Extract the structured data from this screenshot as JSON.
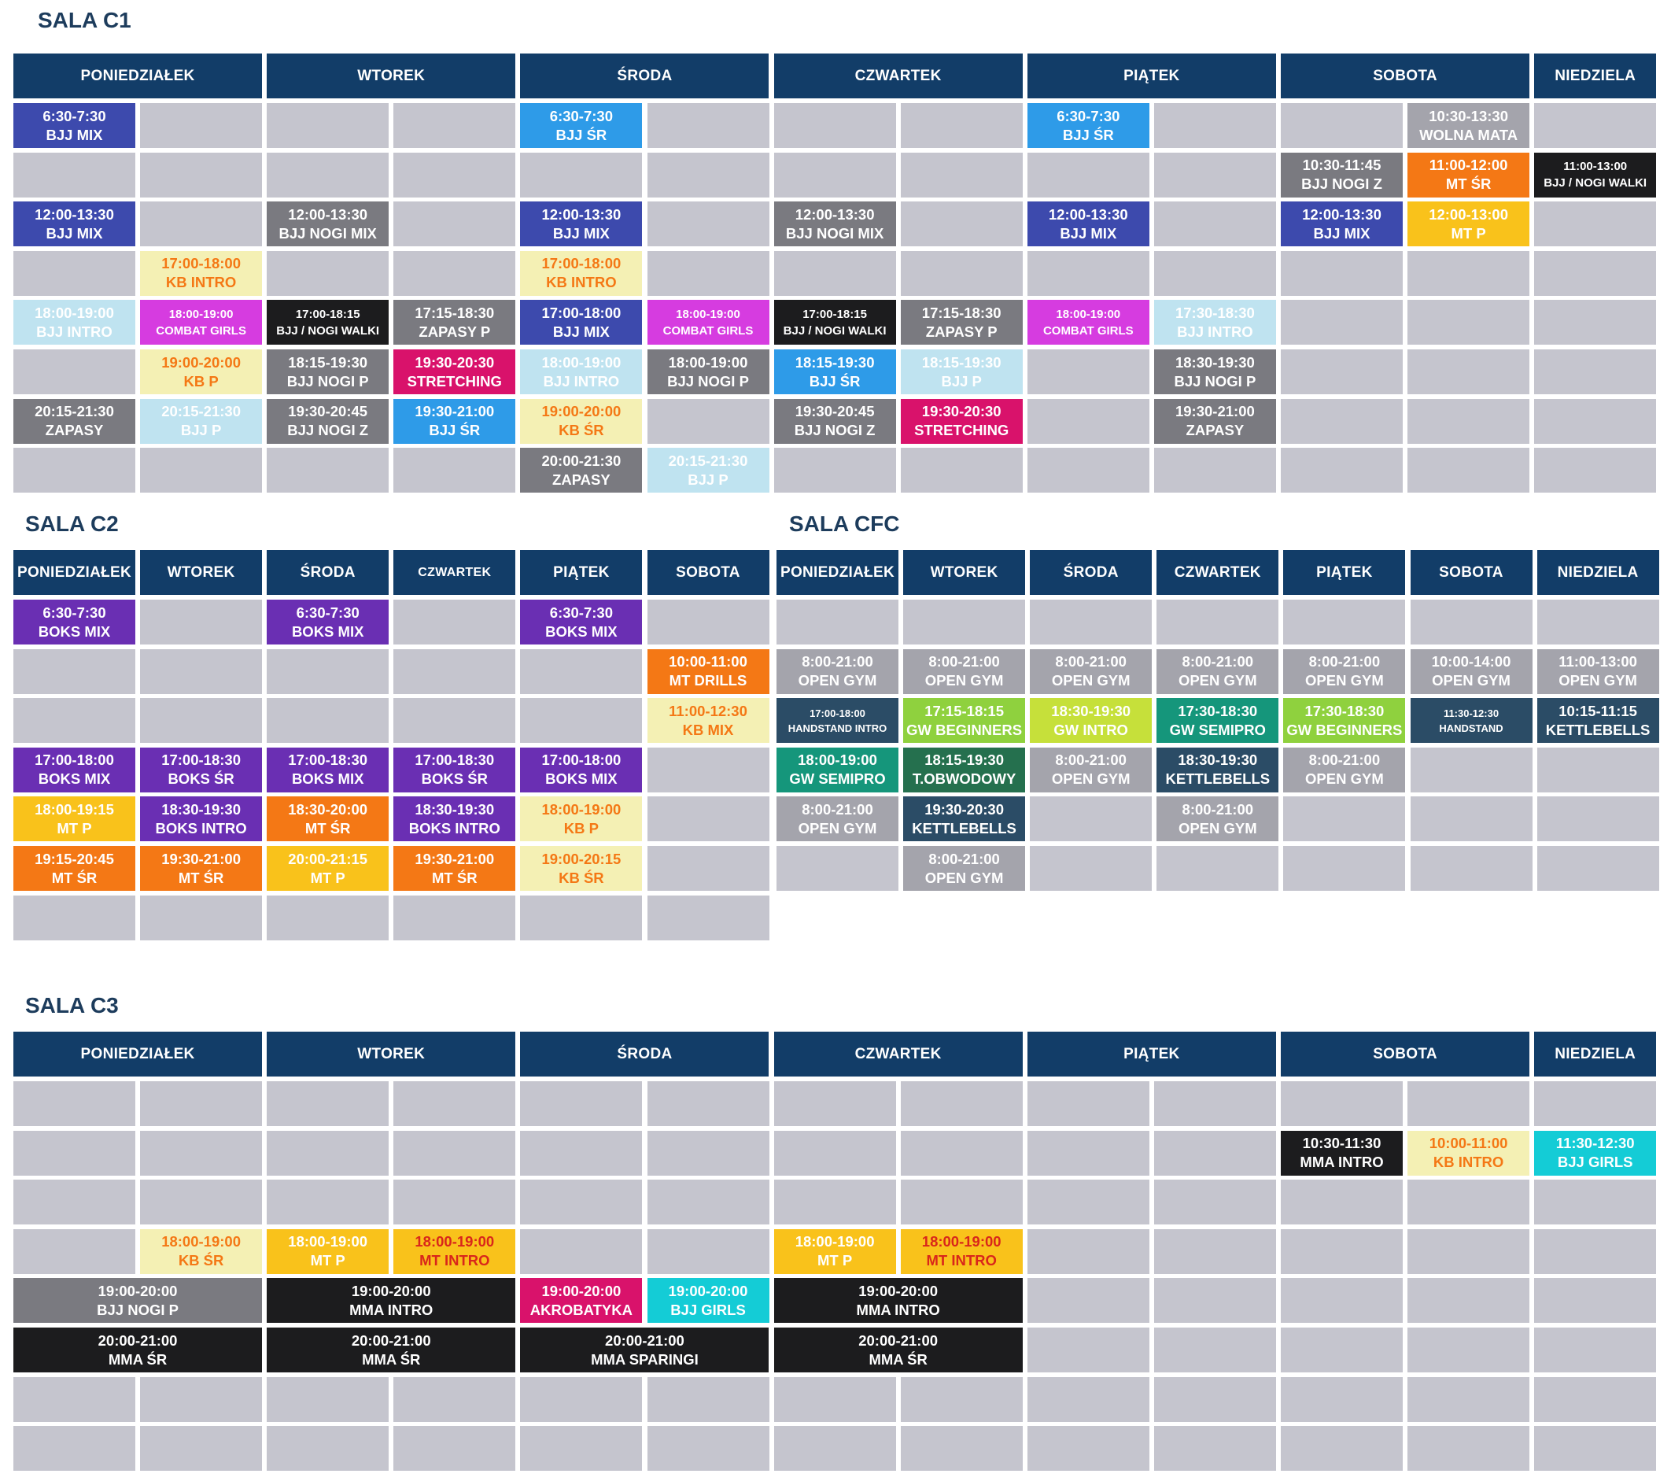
{
  "palette": {
    "header": "#123d68",
    "empty": "#c5c5ce",
    "navy": "#3d4aad",
    "purple": "#6a2fb3",
    "sky": "#2e9be8",
    "lightblue": "#bfe3f0",
    "gray": "#7a7a80",
    "lightgray": "#a4a4ac",
    "black": "#1c1c1e",
    "cream": "#f4f0b4",
    "magenta": "#d63ce0",
    "pink": "#d9126b",
    "orange": "#f47815",
    "yellow": "#f9c21b",
    "turquoise": "#14ccd6",
    "teal": "#15967b",
    "green": "#8fd13e",
    "lime": "#c6e03a",
    "darkgreen": "#25704e",
    "slate": "#2b4c66"
  },
  "sections": [
    {
      "title": "SALA C1",
      "rows": 8,
      "headers": [
        {
          "label": "PONIEDZIAŁEK",
          "cols": 2
        },
        {
          "label": "WTOREK",
          "cols": 2
        },
        {
          "label": "ŚRODA",
          "cols": 2
        },
        {
          "label": "CZWARTEK",
          "cols": 2
        },
        {
          "label": "PIĄTEK",
          "cols": 2
        },
        {
          "label": "SOBOTA",
          "cols": 2
        },
        {
          "label": "NIEDZIELA",
          "cols": 1
        }
      ],
      "events": [
        {
          "row": 0,
          "col": 0,
          "time": "6:30-7:30",
          "name": "BJJ MIX",
          "color": "navy"
        },
        {
          "row": 0,
          "col": 4,
          "time": "6:30-7:30",
          "name": "BJJ ŚR",
          "color": "sky"
        },
        {
          "row": 0,
          "col": 8,
          "time": "6:30-7:30",
          "name": "BJJ ŚR",
          "color": "sky"
        },
        {
          "row": 0,
          "col": 11,
          "time": "10:30-13:30",
          "name": "WOLNA MATA",
          "color": "lightgray"
        },
        {
          "row": 1,
          "col": 10,
          "time": "10:30-11:45",
          "name": "BJJ NOGI Z",
          "color": "gray"
        },
        {
          "row": 1,
          "col": 11,
          "time": "11:00-12:00",
          "name": "MT ŚR",
          "color": "orange"
        },
        {
          "row": 1,
          "col": 12,
          "time": "11:00-13:00",
          "name": "BJJ / NOGI WALKI",
          "color": "black",
          "size": "sm"
        },
        {
          "row": 2,
          "col": 0,
          "time": "12:00-13:30",
          "name": "BJJ MIX",
          "color": "navy"
        },
        {
          "row": 2,
          "col": 2,
          "time": "12:00-13:30",
          "name": "BJJ NOGI MIX",
          "color": "gray"
        },
        {
          "row": 2,
          "col": 4,
          "time": "12:00-13:30",
          "name": "BJJ MIX",
          "color": "navy"
        },
        {
          "row": 2,
          "col": 6,
          "time": "12:00-13:30",
          "name": "BJJ NOGI MIX",
          "color": "gray"
        },
        {
          "row": 2,
          "col": 8,
          "time": "12:00-13:30",
          "name": "BJJ MIX",
          "color": "navy"
        },
        {
          "row": 2,
          "col": 10,
          "time": "12:00-13:30",
          "name": "BJJ MIX",
          "color": "navy"
        },
        {
          "row": 2,
          "col": 11,
          "time": "12:00-13:00",
          "name": "MT P",
          "color": "yellow"
        },
        {
          "row": 3,
          "col": 1,
          "time": "17:00-18:00",
          "name": "KB INTRO",
          "color": "cream",
          "text": "#f47815"
        },
        {
          "row": 3,
          "col": 4,
          "time": "17:00-18:00",
          "name": "KB INTRO",
          "color": "cream",
          "text": "#f47815"
        },
        {
          "row": 4,
          "col": 0,
          "time": "18:00-19:00",
          "name": "BJJ INTRO",
          "color": "lightblue"
        },
        {
          "row": 4,
          "col": 1,
          "time": "18:00-19:00",
          "name": "COMBAT GIRLS",
          "color": "magenta",
          "size": "sm"
        },
        {
          "row": 4,
          "col": 2,
          "time": "17:00-18:15",
          "name": "BJJ / NOGI WALKI",
          "color": "black",
          "size": "sm"
        },
        {
          "row": 4,
          "col": 3,
          "time": "17:15-18:30",
          "name": "ZAPASY P",
          "color": "gray"
        },
        {
          "row": 4,
          "col": 4,
          "time": "17:00-18:00",
          "name": "BJJ MIX",
          "color": "navy"
        },
        {
          "row": 4,
          "col": 5,
          "time": "18:00-19:00",
          "name": "COMBAT GIRLS",
          "color": "magenta",
          "size": "sm"
        },
        {
          "row": 4,
          "col": 6,
          "time": "17:00-18:15",
          "name": "BJJ / NOGI WALKI",
          "color": "black",
          "size": "sm"
        },
        {
          "row": 4,
          "col": 7,
          "time": "17:15-18:30",
          "name": "ZAPASY P",
          "color": "gray"
        },
        {
          "row": 4,
          "col": 8,
          "time": "18:00-19:00",
          "name": "COMBAT GIRLS",
          "color": "magenta",
          "size": "sm"
        },
        {
          "row": 4,
          "col": 9,
          "time": "17:30-18:30",
          "name": "BJJ INTRO",
          "color": "lightblue"
        },
        {
          "row": 5,
          "col": 1,
          "time": "19:00-20:00",
          "name": "KB P",
          "color": "cream",
          "text": "#f47815"
        },
        {
          "row": 5,
          "col": 2,
          "time": "18:15-19:30",
          "name": "BJJ NOGI P",
          "color": "gray"
        },
        {
          "row": 5,
          "col": 3,
          "time": "19:30-20:30",
          "name": "STRETCHING",
          "color": "pink"
        },
        {
          "row": 5,
          "col": 4,
          "time": "18:00-19:00",
          "name": "BJJ INTRO",
          "color": "lightblue"
        },
        {
          "row": 5,
          "col": 5,
          "time": "18:00-19:00",
          "name": "BJJ NOGI P",
          "color": "gray"
        },
        {
          "row": 5,
          "col": 6,
          "time": "18:15-19:30",
          "name": "BJJ ŚR",
          "color": "sky"
        },
        {
          "row": 5,
          "col": 7,
          "time": "18:15-19:30",
          "name": "BJJ P",
          "color": "lightblue"
        },
        {
          "row": 5,
          "col": 9,
          "time": "18:30-19:30",
          "name": "BJJ NOGI P",
          "color": "gray"
        },
        {
          "row": 6,
          "col": 0,
          "time": "20:15-21:30",
          "name": "ZAPASY",
          "color": "gray"
        },
        {
          "row": 6,
          "col": 1,
          "time": "20:15-21:30",
          "name": "BJJ P",
          "color": "lightblue"
        },
        {
          "row": 6,
          "col": 2,
          "time": "19:30-20:45",
          "name": "BJJ NOGI Z",
          "color": "gray"
        },
        {
          "row": 6,
          "col": 3,
          "time": "19:30-21:00",
          "name": "BJJ ŚR",
          "color": "sky"
        },
        {
          "row": 6,
          "col": 4,
          "time": "19:00-20:00",
          "name": "KB ŚR",
          "color": "cream",
          "text": "#f47815"
        },
        {
          "row": 6,
          "col": 6,
          "time": "19:30-20:45",
          "name": "BJJ NOGI Z",
          "color": "gray"
        },
        {
          "row": 6,
          "col": 7,
          "time": "19:30-20:30",
          "name": "STRETCHING",
          "color": "pink"
        },
        {
          "row": 6,
          "col": 9,
          "time": "19:30-21:00",
          "name": "ZAPASY",
          "color": "gray"
        },
        {
          "row": 7,
          "col": 4,
          "time": "20:00-21:30",
          "name": "ZAPASY",
          "color": "gray"
        },
        {
          "row": 7,
          "col": 5,
          "time": "20:15-21:30",
          "name": "BJJ P",
          "color": "lightblue"
        }
      ]
    },
    {
      "title": "SALA C2",
      "rows": 7,
      "headers": [
        {
          "label": "PONIEDZIAŁEK",
          "cols": 1
        },
        {
          "label": "WTOREK",
          "cols": 1
        },
        {
          "label": "ŚRODA",
          "cols": 1
        },
        {
          "label": "CZWARTEK",
          "cols": 1,
          "small": true
        },
        {
          "label": "PIĄTEK",
          "cols": 1
        },
        {
          "label": "SOBOTA",
          "cols": 1
        }
      ],
      "events": [
        {
          "row": 0,
          "col": 0,
          "time": "6:30-7:30",
          "name": "BOKS MIX",
          "color": "purple"
        },
        {
          "row": 0,
          "col": 2,
          "time": "6:30-7:30",
          "name": "BOKS MIX",
          "color": "purple"
        },
        {
          "row": 0,
          "col": 4,
          "time": "6:30-7:30",
          "name": "BOKS MIX",
          "color": "purple"
        },
        {
          "row": 1,
          "col": 5,
          "time": "10:00-11:00",
          "name": "MT DRILLS",
          "color": "orange"
        },
        {
          "row": 2,
          "col": 5,
          "time": "11:00-12:30",
          "name": "KB MIX",
          "color": "cream",
          "text": "#f47815"
        },
        {
          "row": 3,
          "col": 0,
          "time": "17:00-18:00",
          "name": "BOKS MIX",
          "color": "purple"
        },
        {
          "row": 3,
          "col": 1,
          "time": "17:00-18:30",
          "name": "BOKS ŚR",
          "color": "purple"
        },
        {
          "row": 3,
          "col": 2,
          "time": "17:00-18:30",
          "name": "BOKS MIX",
          "color": "purple"
        },
        {
          "row": 3,
          "col": 3,
          "time": "17:00-18:30",
          "name": "BOKS ŚR",
          "color": "purple"
        },
        {
          "row": 3,
          "col": 4,
          "time": "17:00-18:00",
          "name": "BOKS MIX",
          "color": "purple"
        },
        {
          "row": 4,
          "col": 0,
          "time": "18:00-19:15",
          "name": "MT P",
          "color": "yellow"
        },
        {
          "row": 4,
          "col": 1,
          "time": "18:30-19:30",
          "name": "BOKS INTRO",
          "color": "purple"
        },
        {
          "row": 4,
          "col": 2,
          "time": "18:30-20:00",
          "name": "MT ŚR",
          "color": "orange"
        },
        {
          "row": 4,
          "col": 3,
          "time": "18:30-19:30",
          "name": "BOKS INTRO",
          "color": "purple"
        },
        {
          "row": 4,
          "col": 4,
          "time": "18:00-19:00",
          "name": "KB P",
          "color": "cream",
          "text": "#f47815"
        },
        {
          "row": 5,
          "col": 0,
          "time": "19:15-20:45",
          "name": "MT ŚR",
          "color": "orange"
        },
        {
          "row": 5,
          "col": 1,
          "time": "19:30-21:00",
          "name": "MT ŚR",
          "color": "orange"
        },
        {
          "row": 5,
          "col": 2,
          "time": "20:00-21:15",
          "name": "MT P",
          "color": "yellow"
        },
        {
          "row": 5,
          "col": 3,
          "time": "19:30-21:00",
          "name": "MT ŚR",
          "color": "orange"
        },
        {
          "row": 5,
          "col": 4,
          "time": "19:00-20:15",
          "name": "KB ŚR",
          "color": "cream",
          "text": "#f47815"
        }
      ]
    },
    {
      "title": "SALA CFC",
      "rows": 6,
      "headers": [
        {
          "label": "PONIEDZIAŁEK",
          "cols": 1
        },
        {
          "label": "WTOREK",
          "cols": 1
        },
        {
          "label": "ŚRODA",
          "cols": 1
        },
        {
          "label": "CZWARTEK",
          "cols": 1
        },
        {
          "label": "PIĄTEK",
          "cols": 1
        },
        {
          "label": "SOBOTA",
          "cols": 1
        },
        {
          "label": "NIEDZIELA",
          "cols": 1
        }
      ],
      "events": [
        {
          "row": 1,
          "col": 0,
          "time": "8:00-21:00",
          "name": "OPEN GYM",
          "color": "lightgray"
        },
        {
          "row": 1,
          "col": 1,
          "time": "8:00-21:00",
          "name": "OPEN GYM",
          "color": "lightgray"
        },
        {
          "row": 1,
          "col": 2,
          "time": "8:00-21:00",
          "name": "OPEN GYM",
          "color": "lightgray"
        },
        {
          "row": 1,
          "col": 3,
          "time": "8:00-21:00",
          "name": "OPEN GYM",
          "color": "lightgray"
        },
        {
          "row": 1,
          "col": 4,
          "time": "8:00-21:00",
          "name": "OPEN GYM",
          "color": "lightgray"
        },
        {
          "row": 1,
          "col": 5,
          "time": "10:00-14:00",
          "name": "OPEN GYM",
          "color": "lightgray"
        },
        {
          "row": 1,
          "col": 6,
          "time": "11:00-13:00",
          "name": "OPEN GYM",
          "color": "lightgray"
        },
        {
          "row": 2,
          "col": 0,
          "time": "17:00-18:00",
          "name": "HANDSTAND INTRO",
          "color": "slate",
          "size": "xs"
        },
        {
          "row": 2,
          "col": 1,
          "time": "17:15-18:15",
          "name": "GW BEGINNERS",
          "color": "green"
        },
        {
          "row": 2,
          "col": 2,
          "time": "18:30-19:30",
          "name": "GW INTRO",
          "color": "lime"
        },
        {
          "row": 2,
          "col": 3,
          "time": "17:30-18:30",
          "name": "GW SEMIPRO",
          "color": "teal"
        },
        {
          "row": 2,
          "col": 4,
          "time": "17:30-18:30",
          "name": "GW BEGINNERS",
          "color": "green"
        },
        {
          "row": 2,
          "col": 5,
          "time": "11:30-12:30",
          "name": "HANDSTAND",
          "color": "slate",
          "size": "xs"
        },
        {
          "row": 2,
          "col": 6,
          "time": "10:15-11:15",
          "name": "KETTLEBELLS",
          "color": "slate"
        },
        {
          "row": 3,
          "col": 0,
          "time": "18:00-19:00",
          "name": "GW SEMIPRO",
          "color": "teal"
        },
        {
          "row": 3,
          "col": 1,
          "time": "18:15-19:30",
          "name": "T.OBWODOWY",
          "color": "darkgreen"
        },
        {
          "row": 3,
          "col": 2,
          "time": "8:00-21:00",
          "name": "OPEN GYM",
          "color": "lightgray"
        },
        {
          "row": 3,
          "col": 3,
          "time": "18:30-19:30",
          "name": "KETTLEBELLS",
          "color": "slate"
        },
        {
          "row": 3,
          "col": 4,
          "time": "8:00-21:00",
          "name": "OPEN GYM",
          "color": "lightgray"
        },
        {
          "row": 4,
          "col": 0,
          "time": "8:00-21:00",
          "name": "OPEN GYM",
          "color": "lightgray"
        },
        {
          "row": 4,
          "col": 1,
          "time": "19:30-20:30",
          "name": "KETTLEBELLS",
          "color": "slate"
        },
        {
          "row": 4,
          "col": 3,
          "time": "8:00-21:00",
          "name": "OPEN GYM",
          "color": "lightgray"
        },
        {
          "row": 5,
          "col": 1,
          "time": "8:00-21:00",
          "name": "OPEN GYM",
          "color": "lightgray"
        }
      ]
    },
    {
      "title": "SALA C3",
      "rows": 8,
      "headers": [
        {
          "label": "PONIEDZIAŁEK",
          "cols": 2
        },
        {
          "label": "WTOREK",
          "cols": 2
        },
        {
          "label": "ŚRODA",
          "cols": 2
        },
        {
          "label": "CZWARTEK",
          "cols": 2
        },
        {
          "label": "PIĄTEK",
          "cols": 2
        },
        {
          "label": "SOBOTA",
          "cols": 2
        },
        {
          "label": "NIEDZIELA",
          "cols": 1
        }
      ],
      "events": [
        {
          "row": 1,
          "col": 10,
          "time": "10:30-11:30",
          "name": "MMA INTRO",
          "color": "black"
        },
        {
          "row": 1,
          "col": 11,
          "time": "10:00-11:00",
          "name": "KB INTRO",
          "color": "cream",
          "text": "#f47815"
        },
        {
          "row": 1,
          "col": 12,
          "time": "11:30-12:30",
          "name": "BJJ GIRLS",
          "color": "turquoise"
        },
        {
          "row": 3,
          "col": 1,
          "time": "18:00-19:00",
          "name": "KB ŚR",
          "color": "cream",
          "text": "#f47815"
        },
        {
          "row": 3,
          "col": 2,
          "time": "18:00-19:00",
          "name": "MT P",
          "color": "yellow"
        },
        {
          "row": 3,
          "col": 3,
          "time": "18:00-19:00",
          "name": "MT INTRO",
          "color": "yellow",
          "text": "#d9261b"
        },
        {
          "row": 3,
          "col": 6,
          "time": "18:00-19:00",
          "name": "MT P",
          "color": "yellow"
        },
        {
          "row": 3,
          "col": 7,
          "time": "18:00-19:00",
          "name": "MT INTRO",
          "color": "yellow",
          "text": "#d9261b"
        },
        {
          "row": 4,
          "col": 0,
          "span": 2,
          "time": "19:00-20:00",
          "name": "BJJ NOGI P",
          "color": "gray"
        },
        {
          "row": 4,
          "col": 2,
          "span": 2,
          "time": "19:00-20:00",
          "name": "MMA INTRO",
          "color": "black"
        },
        {
          "row": 4,
          "col": 4,
          "time": "19:00-20:00",
          "name": "AKROBATYKA",
          "color": "pink"
        },
        {
          "row": 4,
          "col": 5,
          "time": "19:00-20:00",
          "name": "BJJ GIRLS",
          "color": "turquoise"
        },
        {
          "row": 4,
          "col": 6,
          "span": 2,
          "time": "19:00-20:00",
          "name": "MMA INTRO",
          "color": "black"
        },
        {
          "row": 5,
          "col": 0,
          "span": 2,
          "time": "20:00-21:00",
          "name": "MMA ŚR",
          "color": "black"
        },
        {
          "row": 5,
          "col": 2,
          "span": 2,
          "time": "20:00-21:00",
          "name": "MMA ŚR",
          "color": "black"
        },
        {
          "row": 5,
          "col": 4,
          "span": 2,
          "time": "20:00-21:00",
          "name": "MMA SPARINGI",
          "color": "black"
        },
        {
          "row": 5,
          "col": 6,
          "span": 2,
          "time": "20:00-21:00",
          "name": "MMA ŚR",
          "color": "black"
        }
      ]
    }
  ]
}
